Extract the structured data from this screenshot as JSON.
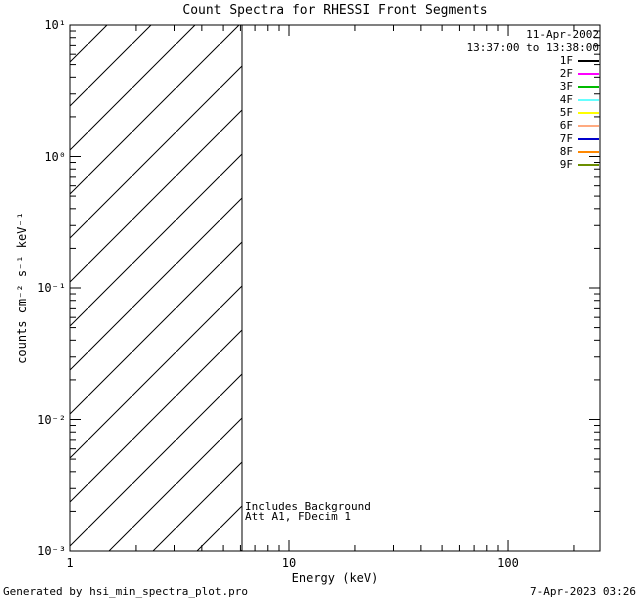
{
  "footer_left": "Generated by hsi_min_spectra_plot.pro",
  "footer_right": "7-Apr-2023 03:26",
  "chart_data": {
    "type": "line",
    "title": "Count Spectra for RHESSI Front Segments",
    "xlabel": "Energy (keV)",
    "ylabel": "counts cm^-2 s^-1 keV^-1",
    "ylabel_display": "counts cm⁻² s⁻¹ keV⁻¹",
    "x_scale": "log",
    "y_scale": "log",
    "xlim": [
      1,
      263
    ],
    "ylim": [
      0.001,
      10
    ],
    "grid": false,
    "x_ticks": [
      {
        "value": 1,
        "label": "1"
      },
      {
        "value": 10,
        "label": "10"
      },
      {
        "value": 100,
        "label": "100"
      }
    ],
    "y_ticks": [
      {
        "value": 10,
        "label": "10¹"
      },
      {
        "value": 1,
        "label": "10⁰"
      },
      {
        "value": 0.1,
        "label": "10⁻¹"
      },
      {
        "value": 0.01,
        "label": "10⁻²"
      },
      {
        "value": 0.001,
        "label": "10⁻³"
      }
    ],
    "series": [],
    "hatched_region": {
      "x_start": 1,
      "x_end": 6.1
    },
    "annotations": [
      "Includes Background",
      "Att A1, FDecim 1"
    ],
    "legend": {
      "position": "top-right",
      "date": "11-Apr-2002",
      "interval": "13:37:00 to 13:38:00",
      "entries": [
        {
          "label": "1F",
          "color": "#000000"
        },
        {
          "label": "2F",
          "color": "#ff00ff"
        },
        {
          "label": "3F",
          "color": "#00bb00"
        },
        {
          "label": "4F",
          "color": "#66ffff"
        },
        {
          "label": "5F",
          "color": "#ffff00"
        },
        {
          "label": "6F",
          "color": "#ffaa80"
        },
        {
          "label": "7F",
          "color": "#0000cc"
        },
        {
          "label": "8F",
          "color": "#ff8800"
        },
        {
          "label": "9F",
          "color": "#6b8e00"
        }
      ]
    }
  }
}
